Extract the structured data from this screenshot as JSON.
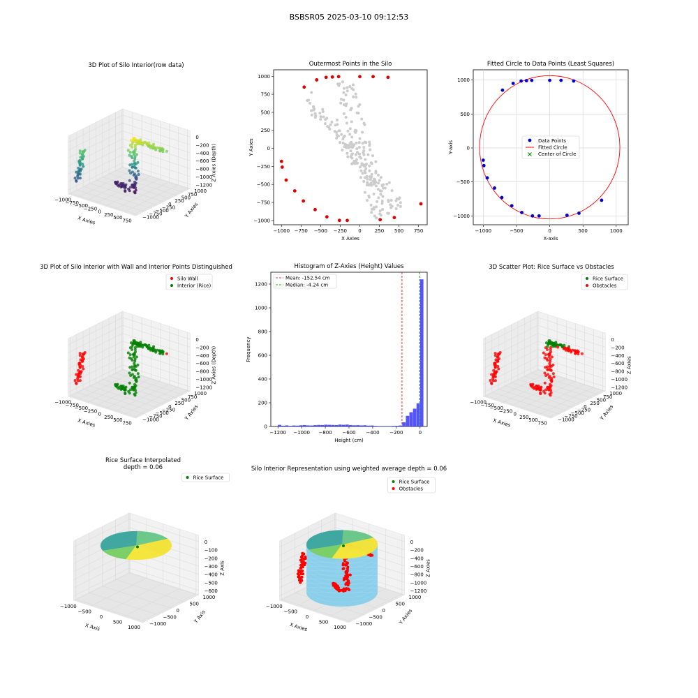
{
  "figure_title": "BSBSR05 2025-03-10 09:12:53",
  "chart_data": [
    {
      "id": "p1",
      "type": "scatter3d",
      "title": "3D Plot of Silo Interior(row data)",
      "xlabel": "X Axies",
      "ylabel": "Y Axies",
      "zlabel": "Z Axies (Depth)",
      "x_ticks": [
        "−1000",
        "−750",
        "−500",
        "−250",
        "0",
        "250",
        "500",
        "750"
      ],
      "y_ticks": [
        "1000",
        "750",
        "500",
        "250",
        "0",
        "−250",
        "−500",
        "−750",
        "−1000"
      ],
      "z_ticks": [
        "0",
        "−200",
        "−400",
        "−600",
        "−800",
        "−1000",
        "−1200"
      ],
      "colormap": "viridis"
    },
    {
      "id": "p2",
      "type": "scatter",
      "title": "Outermost Points in the Silo",
      "xlabel": "X Axies",
      "ylabel": "Y Axies",
      "xlim": [
        -1100,
        860
      ],
      "ylim": [
        -1060,
        1090
      ],
      "x_ticks": [
        -1000,
        -750,
        -500,
        -250,
        0,
        250,
        500,
        750
      ],
      "y_ticks": [
        -1000,
        -750,
        -500,
        -250,
        0,
        250,
        500,
        750,
        1000
      ],
      "tick_labels_x": [
        "−1000",
        "−750",
        "−500",
        "−250",
        "0",
        "250",
        "500",
        "750"
      ],
      "tick_labels_y": [
        "−1000",
        "−750",
        "−500",
        "−250",
        "0",
        "250",
        "500",
        "750",
        "1000"
      ],
      "outer_points": [
        [
          -1000,
          -180
        ],
        [
          -990,
          -260
        ],
        [
          -940,
          -440
        ],
        [
          -830,
          -590
        ],
        [
          -720,
          -730
        ],
        [
          -570,
          -850
        ],
        [
          -420,
          -950
        ],
        [
          -260,
          -1000
        ],
        [
          -160,
          -1000
        ],
        [
          260,
          -990
        ],
        [
          440,
          -960
        ],
        [
          780,
          -770
        ],
        [
          -710,
          850
        ],
        [
          -550,
          950
        ],
        [
          -430,
          985
        ],
        [
          -350,
          990
        ],
        [
          -270,
          995
        ],
        [
          0,
          995
        ],
        [
          170,
          995
        ],
        [
          360,
          985
        ]
      ],
      "outer_color": "#e00000",
      "interior_color": "#cccccc"
    },
    {
      "id": "p3",
      "type": "scatter",
      "title": "Fitted Circle to Data Points (Least Squares)",
      "xlabel": "X-axis",
      "ylabel": "Y-axis",
      "xlim": [
        -1150,
        1180
      ],
      "ylim": [
        -1130,
        1150
      ],
      "x_ticks": [
        -1000,
        -500,
        0,
        500,
        1000
      ],
      "y_ticks": [
        -1000,
        -500,
        0,
        500,
        1000
      ],
      "tick_labels_x": [
        "−1000",
        "−500",
        "0",
        "500",
        "1000"
      ],
      "tick_labels_y": [
        "−1000",
        "−500",
        "0",
        "500",
        "1000"
      ],
      "grid": true,
      "circle": {
        "cx": 0,
        "cy": 10,
        "r": 1055
      },
      "center": [
        0,
        10
      ],
      "legend": [
        "Data Points",
        "Fitted Circle",
        "Center of Circle"
      ],
      "legend_position": "center",
      "colors": {
        "points": "#0000cc",
        "circle": "#ff0000",
        "center": "#008000"
      }
    },
    {
      "id": "p4",
      "type": "scatter3d",
      "title": "3D Plot of Silo Interior with Wall and Interior Points Distinguished",
      "xlabel": "X Axies",
      "ylabel": "Y Axies",
      "zlabel": "Z Axies (Depth)",
      "x_ticks": [
        "−1000",
        "−750",
        "−500",
        "−250",
        "0",
        "250",
        "500",
        "750"
      ],
      "y_ticks": [
        "1000",
        "750",
        "500",
        "250",
        "0",
        "−250",
        "−500",
        "−750",
        "−1000"
      ],
      "z_ticks": [
        "0",
        "−200",
        "−400",
        "−600",
        "−800",
        "−1000",
        "−1200"
      ],
      "legend": [
        "Silo Wall",
        "Interior (Rice)"
      ],
      "legend_position": "upper-right",
      "colors": {
        "wall": "#ff0000",
        "interior": "#008000"
      }
    },
    {
      "id": "p5",
      "type": "bar",
      "title": "Histogram of Z-Axies (Height) Values",
      "xlabel": "Height (cm)",
      "ylabel": "Frequency",
      "xlim": [
        -1260,
        60
      ],
      "ylim": [
        0,
        1300
      ],
      "x_ticks": [
        -1200,
        -1000,
        -800,
        -600,
        -400,
        -200,
        0
      ],
      "y_ticks": [
        0,
        200,
        400,
        600,
        800,
        1000,
        1200
      ],
      "tick_labels_x": [
        "−1200",
        "−1000",
        "−800",
        "−600",
        "−400",
        "−200",
        "0"
      ],
      "tick_labels_y": [
        "0",
        "200",
        "400",
        "600",
        "800",
        "1000",
        "1200"
      ],
      "bin_width": 30,
      "bins": [
        {
          "x0": -1200,
          "count": 14
        },
        {
          "x0": -1170,
          "count": 6
        },
        {
          "x0": -1140,
          "count": 9
        },
        {
          "x0": -1110,
          "count": 5
        },
        {
          "x0": -1080,
          "count": 8
        },
        {
          "x0": -1050,
          "count": 7
        },
        {
          "x0": -1020,
          "count": 10
        },
        {
          "x0": -990,
          "count": 12
        },
        {
          "x0": -960,
          "count": 9
        },
        {
          "x0": -930,
          "count": 8
        },
        {
          "x0": -900,
          "count": 11
        },
        {
          "x0": -870,
          "count": 13
        },
        {
          "x0": -840,
          "count": 12
        },
        {
          "x0": -810,
          "count": 15
        },
        {
          "x0": -780,
          "count": 14
        },
        {
          "x0": -750,
          "count": 13
        },
        {
          "x0": -720,
          "count": 12
        },
        {
          "x0": -690,
          "count": 16
        },
        {
          "x0": -660,
          "count": 14
        },
        {
          "x0": -630,
          "count": 16
        },
        {
          "x0": -600,
          "count": 12
        },
        {
          "x0": -570,
          "count": 10
        },
        {
          "x0": -540,
          "count": 11
        },
        {
          "x0": -510,
          "count": 9
        },
        {
          "x0": -480,
          "count": 10
        },
        {
          "x0": -450,
          "count": 7
        },
        {
          "x0": -420,
          "count": 8
        },
        {
          "x0": -390,
          "count": 4
        },
        {
          "x0": -360,
          "count": 3
        },
        {
          "x0": -330,
          "count": 2
        },
        {
          "x0": -300,
          "count": 3
        },
        {
          "x0": -270,
          "count": 2
        },
        {
          "x0": -240,
          "count": 4
        },
        {
          "x0": -210,
          "count": 5
        },
        {
          "x0": -180,
          "count": 8
        },
        {
          "x0": -150,
          "count": 35
        },
        {
          "x0": -120,
          "count": 90
        },
        {
          "x0": -90,
          "count": 120
        },
        {
          "x0": -60,
          "count": 150
        },
        {
          "x0": -30,
          "count": 195
        },
        {
          "x0": 0,
          "count": 1240
        }
      ],
      "bar_color": "#4040ff",
      "mean": -152.54,
      "median": -4.24,
      "legend": [
        "Mean: -152.54 cm",
        "Median: -4.24 cm"
      ],
      "legend_position": "upper-left"
    },
    {
      "id": "p6",
      "type": "scatter3d",
      "title": "3D Scatter Plot: Rice Surface vs Obstacles",
      "xlabel": "X Axies",
      "ylabel": "Y Axies",
      "zlabel": "Z Axies",
      "x_ticks": [
        "−1000",
        "−750",
        "−500",
        "−250",
        "0",
        "250",
        "500",
        "750"
      ],
      "y_ticks": [
        "1000",
        "750",
        "500",
        "250",
        "0",
        "−250",
        "−500",
        "−750",
        "−1000"
      ],
      "z_ticks": [
        "0",
        "−200",
        "−400",
        "−600",
        "−800",
        "−1000",
        "−1200"
      ],
      "legend": [
        "Rice Surface",
        "Obstacles"
      ],
      "legend_position": "upper-right",
      "colors": {
        "rice": "#008000",
        "obstacles": "#ff0000"
      }
    },
    {
      "id": "p7",
      "type": "surface3d",
      "title": "Rice Surface Interpolated",
      "subtitle": "depth = 0.06",
      "xlabel": "X Axis",
      "ylabel": "Y Axis",
      "zlabel": "Z Axis",
      "x_ticks": [
        "−1000",
        "−500",
        "0",
        "500",
        "1000"
      ],
      "y_ticks": [
        "1000",
        "500",
        "0",
        "−500",
        "−1000"
      ],
      "z_ticks": [
        "0",
        "−100",
        "−200",
        "−300",
        "−400",
        "−500",
        "−600"
      ],
      "legend": [
        "Rice Surface"
      ],
      "legend_position": "upper-right",
      "colors": {
        "rice": "#008000"
      }
    },
    {
      "id": "p8",
      "type": "surface3d",
      "title": "Silo Interior Representation using weighted average depth = 0.06",
      "xlabel": "X Axies",
      "ylabel": "Y Axies",
      "zlabel": "Z Axies",
      "x_ticks": [
        "−1000",
        "−500",
        "0",
        "500",
        "1000"
      ],
      "y_ticks": [
        "1000",
        "500",
        "0",
        "−500",
        "−1000"
      ],
      "z_ticks": [
        "0",
        "−200",
        "−400",
        "−600",
        "−800",
        "−1000",
        "−1200"
      ],
      "legend": [
        "Rice Surface",
        "Obstacles"
      ],
      "legend_position": "upper-right",
      "colors": {
        "rice": "#008000",
        "obstacles": "#ff0000",
        "wall": "#87ceeb"
      }
    }
  ]
}
